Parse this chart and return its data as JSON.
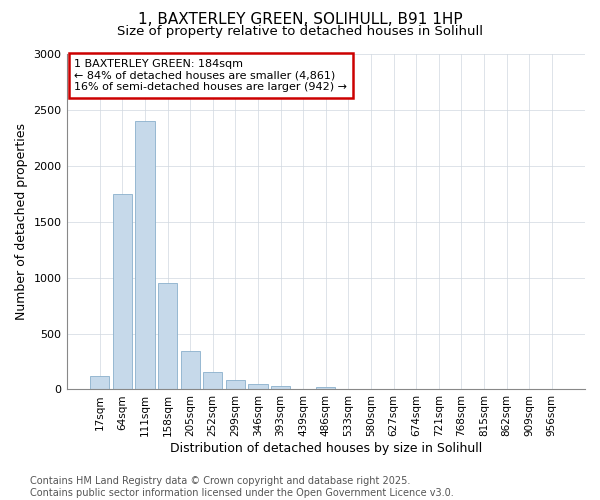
{
  "title_line1": "1, BAXTERLEY GREEN, SOLIHULL, B91 1HP",
  "title_line2": "Size of property relative to detached houses in Solihull",
  "xlabel": "Distribution of detached houses by size in Solihull",
  "ylabel": "Number of detached properties",
  "categories": [
    "17sqm",
    "64sqm",
    "111sqm",
    "158sqm",
    "205sqm",
    "252sqm",
    "299sqm",
    "346sqm",
    "393sqm",
    "439sqm",
    "486sqm",
    "533sqm",
    "580sqm",
    "627sqm",
    "674sqm",
    "721sqm",
    "768sqm",
    "815sqm",
    "862sqm",
    "909sqm",
    "956sqm"
  ],
  "values": [
    120,
    1750,
    2400,
    950,
    340,
    155,
    85,
    50,
    30,
    0,
    20,
    5,
    2,
    0,
    0,
    0,
    0,
    0,
    0,
    0,
    0
  ],
  "bar_color": "#c6d9ea",
  "bar_edge_color": "#8ab0cc",
  "ylim": [
    0,
    3000
  ],
  "yticks": [
    0,
    500,
    1000,
    1500,
    2000,
    2500,
    3000
  ],
  "annotation_text_line1": "1 BAXTERLEY GREEN: 184sqm",
  "annotation_text_line2": "← 84% of detached houses are smaller (4,861)",
  "annotation_text_line3": "16% of semi-detached houses are larger (942) →",
  "annotation_box_color": "#ffffff",
  "annotation_border_color": "#cc0000",
  "footnote_line1": "Contains HM Land Registry data © Crown copyright and database right 2025.",
  "footnote_line2": "Contains public sector information licensed under the Open Government Licence v3.0.",
  "title_fontsize": 11,
  "subtitle_fontsize": 9.5,
  "axis_label_fontsize": 9,
  "tick_fontsize": 7.5,
  "annotation_fontsize": 8,
  "footnote_fontsize": 7,
  "background_color": "#ffffff",
  "plot_background_color": "#ffffff"
}
